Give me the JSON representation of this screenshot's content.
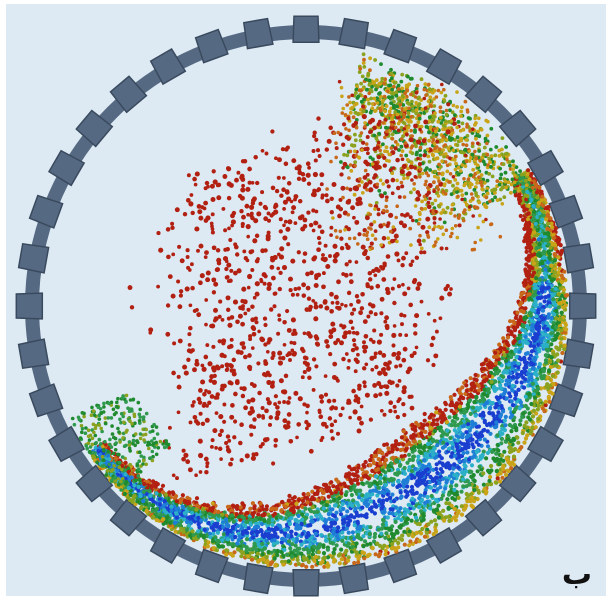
{
  "figure": {
    "panel_label": "ب",
    "colors": {
      "background": "#dde9f3",
      "drum_fill": "#556a82",
      "drum_edge": "#3a4a5e",
      "particle_scale": [
        "#1a3fd0",
        "#1f7fd6",
        "#2bb0c8",
        "#2f9a4e",
        "#1f8a2e",
        "#8aa21e",
        "#c9a318",
        "#c8681a",
        "#b22012"
      ]
    }
  }
}
